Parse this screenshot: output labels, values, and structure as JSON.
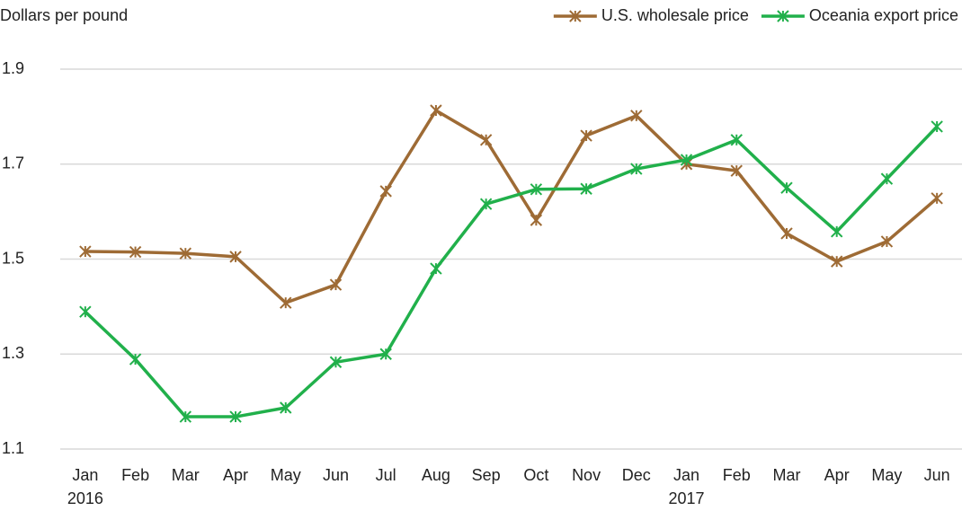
{
  "chart_data": {
    "type": "line",
    "y_axis_label": "Dollars per pound",
    "categories": [
      "Jan",
      "Feb",
      "Mar",
      "Apr",
      "May",
      "Jun",
      "Jul",
      "Aug",
      "Sep",
      "Oct",
      "Nov",
      "Dec",
      "Jan",
      "Feb",
      "Mar",
      "Apr",
      "May",
      "Jun"
    ],
    "years": [
      "2016",
      null,
      null,
      null,
      null,
      null,
      null,
      null,
      null,
      null,
      null,
      null,
      "2017",
      null,
      null,
      null,
      null,
      null
    ],
    "series": [
      {
        "name": "U.S. wholesale price",
        "color": "#9e6b35",
        "values": [
          1.516,
          1.515,
          1.512,
          1.505,
          1.408,
          1.446,
          1.643,
          1.813,
          1.751,
          1.582,
          1.76,
          1.802,
          1.7,
          1.686,
          1.554,
          1.495,
          1.537,
          1.628
        ]
      },
      {
        "name": "Oceania export price",
        "color": "#21b04b",
        "values": [
          1.389,
          1.289,
          1.168,
          1.168,
          1.187,
          1.283,
          1.3,
          1.48,
          1.616,
          1.647,
          1.648,
          1.69,
          1.709,
          1.751,
          1.65,
          1.558,
          1.669,
          1.779
        ]
      }
    ],
    "ylim": [
      1.1,
      1.9
    ],
    "yticks": [
      1.1,
      1.3,
      1.5,
      1.7,
      1.9
    ],
    "grid": true,
    "legend": "top-right"
  }
}
